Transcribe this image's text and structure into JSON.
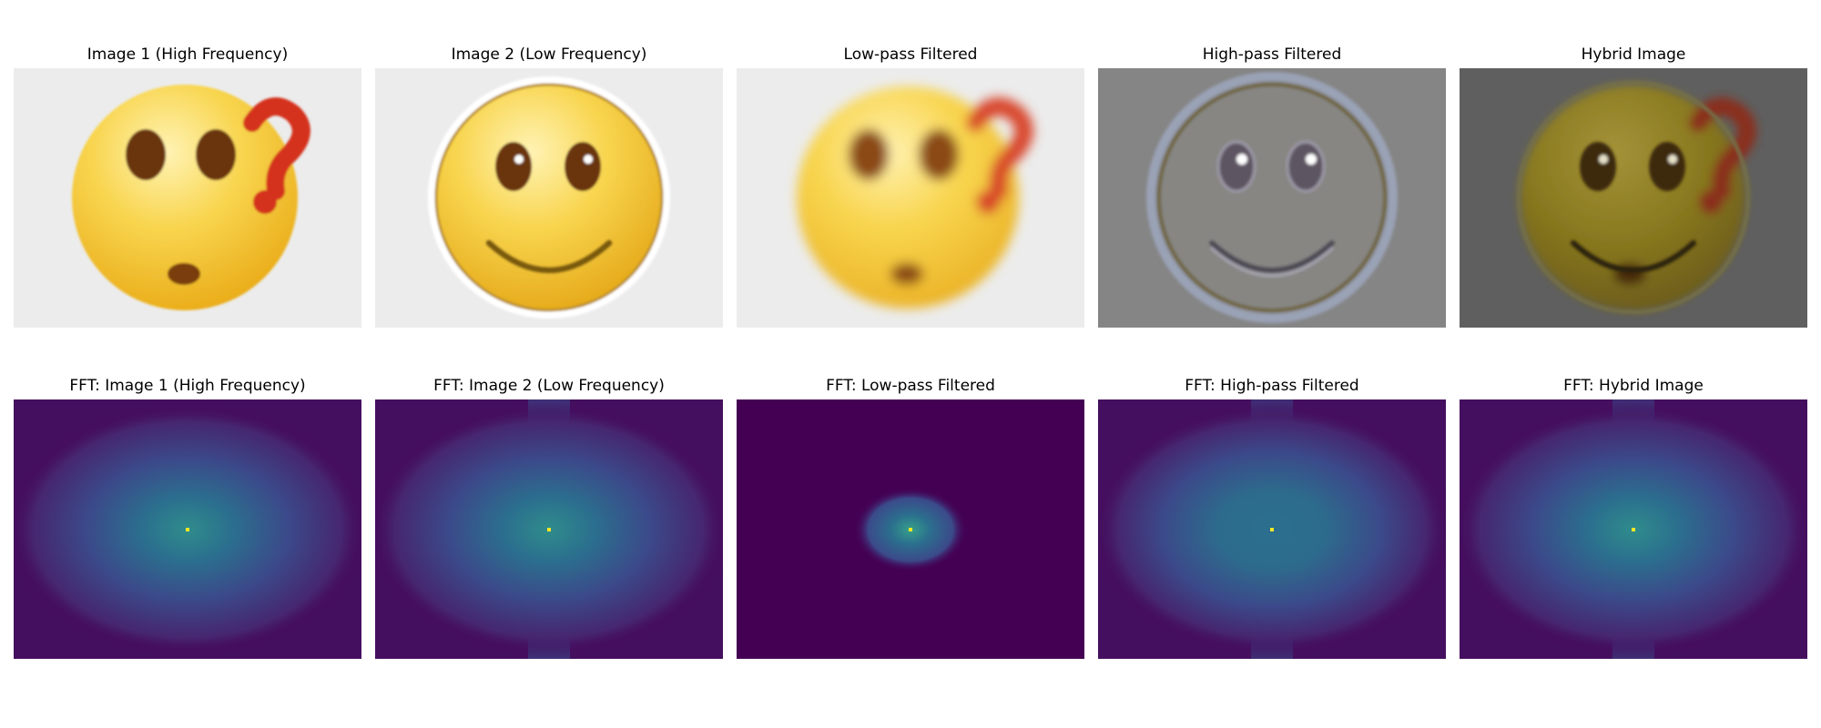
{
  "figure": {
    "row1": {
      "titles": [
        "Image 1 (High Frequency)",
        "Image 2 (Low Frequency)",
        "Low-pass Filtered",
        "High-pass Filtered",
        "Hybrid Image"
      ]
    },
    "row2": {
      "titles": [
        "FFT: Image 1 (High Frequency)",
        "FFT: Image 2 (Low Frequency)",
        "FFT: Low-pass Filtered",
        "FFT: High-pass Filtered",
        "FFT: Hybrid Image"
      ]
    },
    "colors": {
      "background_light": "#ececec",
      "highpass_gray": "#858585",
      "hybrid_gray": "#5f5f5f",
      "emoji_yellow": "#f7d24a",
      "question_red": "#d4321c",
      "viridis_dark": "#440154",
      "viridis_mid": "#31688e",
      "viridis_teal": "#21918c",
      "viridis_green": "#5ec962",
      "viridis_yellow": "#fde725"
    }
  }
}
